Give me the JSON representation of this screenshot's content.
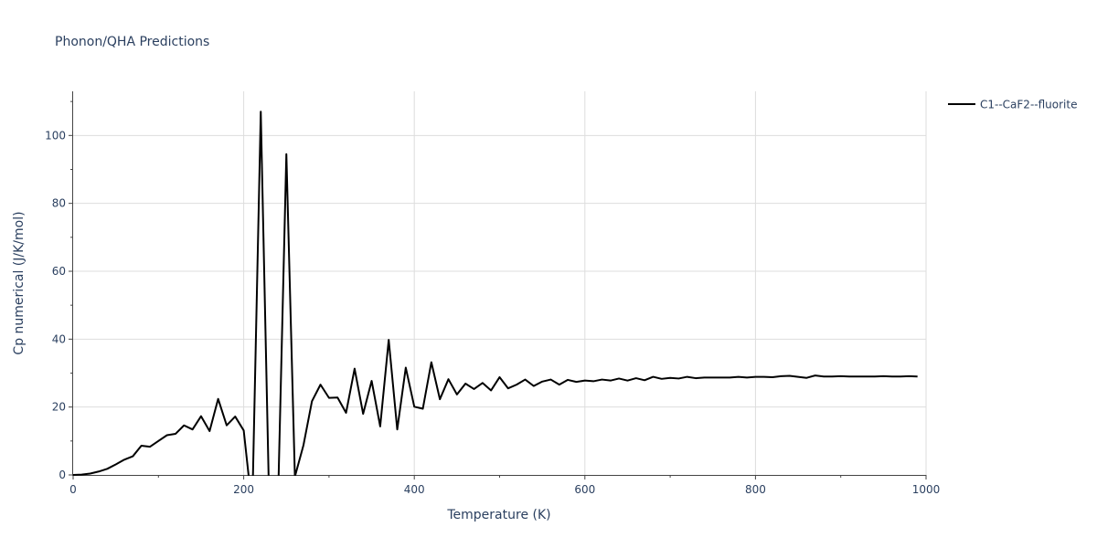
{
  "chart_data": {
    "type": "line",
    "title": "Phonon/QHA Predictions",
    "xlabel": "Temperature (K)",
    "ylabel": "Cp numerical (J/K/mol)",
    "xlim": [
      0,
      1000
    ],
    "ylim": [
      0,
      113
    ],
    "xticks": [
      0,
      200,
      400,
      600,
      800,
      1000
    ],
    "yticks": [
      0,
      20,
      40,
      60,
      80,
      100
    ],
    "grid": true,
    "legend_position": "top-right",
    "series": [
      {
        "name": "C1--CaF2--fluorite",
        "color": "#000000",
        "x": [
          0,
          10,
          20,
          30,
          40,
          50,
          60,
          70,
          80,
          90,
          100,
          110,
          120,
          130,
          140,
          150,
          160,
          170,
          180,
          190,
          200,
          210,
          220,
          230,
          240,
          250,
          260,
          270,
          280,
          290,
          300,
          310,
          320,
          330,
          340,
          350,
          360,
          370,
          380,
          390,
          400,
          410,
          420,
          430,
          440,
          450,
          460,
          470,
          480,
          490,
          500,
          510,
          520,
          530,
          540,
          550,
          560,
          570,
          580,
          590,
          600,
          610,
          620,
          630,
          640,
          650,
          660,
          670,
          680,
          690,
          700,
          710,
          720,
          730,
          740,
          750,
          760,
          770,
          780,
          790,
          800,
          810,
          820,
          830,
          840,
          850,
          860,
          870,
          880,
          890,
          900,
          910,
          920,
          930,
          940,
          950,
          960,
          970,
          980,
          990
        ],
        "y": [
          0,
          0.1,
          0.4,
          1.0,
          1.8,
          3.1,
          4.5,
          5.5,
          8.6,
          8.3,
          10.0,
          11.7,
          12.1,
          14.6,
          13.4,
          17.3,
          12.9,
          22.4,
          14.6,
          17.2,
          13.1,
          -10,
          107,
          -10,
          -10,
          94.5,
          -0.5,
          8.7,
          21.7,
          26.6,
          22.7,
          22.8,
          18.3,
          31.3,
          18.0,
          27.7,
          14.3,
          39.8,
          13.4,
          31.6,
          20.1,
          19.5,
          33.2,
          22.3,
          28.2,
          23.7,
          26.9,
          25.3,
          27.1,
          24.9,
          28.8,
          25.5,
          26.6,
          28.1,
          26.2,
          27.5,
          28.1,
          26.6,
          28.0,
          27.4,
          27.8,
          27.6,
          28.1,
          27.8,
          28.4,
          27.8,
          28.5,
          27.9,
          28.9,
          28.3,
          28.6,
          28.4,
          28.9,
          28.5,
          28.7,
          28.7,
          28.7,
          28.7,
          28.9,
          28.7,
          28.9,
          28.9,
          28.8,
          29.1,
          29.2,
          28.9,
          28.6,
          29.3,
          29.0,
          29.0,
          29.1,
          29.0,
          29.0,
          29.0,
          29.0,
          29.1,
          29.0,
          29.0,
          29.1,
          29.0
        ]
      }
    ]
  }
}
